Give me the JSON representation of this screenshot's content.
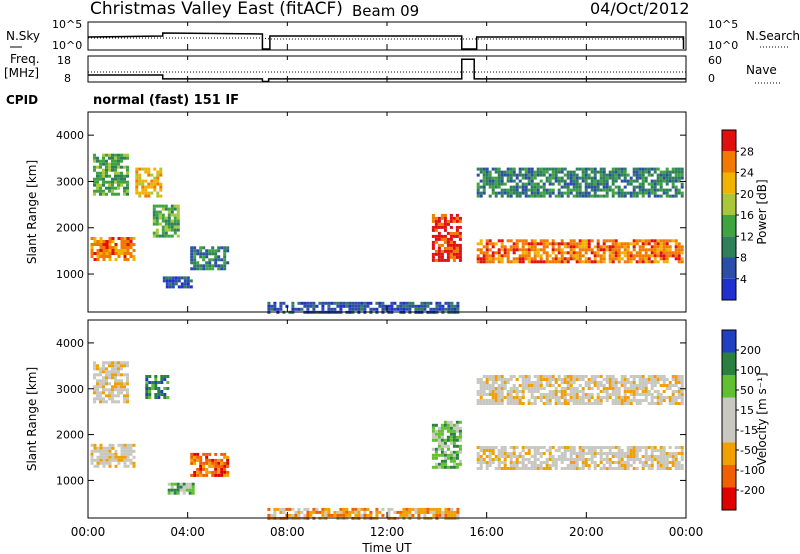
{
  "header": {
    "title": "Christmas Valley East (fitACF)",
    "beam": "Beam 09",
    "date": "04/Oct/2012"
  },
  "colors": {
    "power": [
      "#1f2fd0",
      "#2b4fa8",
      "#2e7f5a",
      "#3fa33f",
      "#a8c83a",
      "#f2b300",
      "#f27a00",
      "#e01010"
    ],
    "velocity": [
      "#e00000",
      "#f06000",
      "#f0a000",
      "#c8c8c0",
      "#c8c8c0",
      "#60c030",
      "#2a8040",
      "#2040c0"
    ]
  },
  "chart_data": [
    {
      "type": "line",
      "panel": "N.Sky / N.Search",
      "left_label": "N.Sky",
      "right_label": "N.Search",
      "left_ticks": [
        "10^5",
        "10^0"
      ],
      "right_ticks": [
        "10^5",
        "10^0"
      ],
      "x_ticks": [
        "00:00",
        "04:00",
        "08:00",
        "12:00",
        "16:00",
        "20:00",
        "00:00"
      ]
    },
    {
      "type": "line",
      "panel": "Freq / Nave",
      "left_label_1": "Freq.",
      "left_label_2": "[MHz]",
      "left_ticks": [
        "18",
        "8"
      ],
      "right_label": "Nave",
      "right_ticks": [
        "60",
        "0"
      ],
      "cpid_label": "CPID",
      "cpid_text": "normal (fast) 151 IF",
      "freq_steps": [
        [
          0,
          10.9
        ],
        [
          3.0,
          10.9
        ],
        [
          3.0,
          9.3
        ],
        [
          7.0,
          9.3
        ],
        [
          7.0,
          8.2
        ],
        [
          7.25,
          8.2
        ],
        [
          7.25,
          9.3
        ],
        [
          15.0,
          9.3
        ],
        [
          15.0,
          17.5
        ],
        [
          15.5,
          17.5
        ],
        [
          15.5,
          9.3
        ],
        [
          24.0,
          9.3
        ]
      ]
    },
    {
      "type": "heatmap",
      "panel": "power",
      "ylabel": "Slant Range [km]",
      "yticks": [
        1000,
        2000,
        3000,
        4000
      ],
      "ylim": [
        180,
        4500
      ],
      "xlim": [
        0,
        24
      ],
      "colorbar_label": "Power [dB]",
      "colorbar_ticks": [
        "4",
        "8",
        "12",
        "16",
        "20",
        "24",
        "28"
      ],
      "echo_regions": [
        {
          "t0": 0.1,
          "t1": 1.8,
          "r0": 1300,
          "r1": 1800,
          "level": 6
        },
        {
          "t0": 0.2,
          "t1": 1.6,
          "r0": 2700,
          "r1": 3600,
          "level": 3
        },
        {
          "t0": 1.9,
          "t1": 2.9,
          "r0": 2700,
          "r1": 3300,
          "level": 5
        },
        {
          "t0": 2.6,
          "t1": 3.6,
          "r0": 1800,
          "r1": 2500,
          "level": 3
        },
        {
          "t0": 4.1,
          "t1": 5.6,
          "r0": 1100,
          "r1": 1600,
          "level": 2
        },
        {
          "t0": 3.0,
          "t1": 4.2,
          "r0": 700,
          "r1": 950,
          "level": 1
        },
        {
          "t0": 7.2,
          "t1": 14.8,
          "r0": 180,
          "r1": 400,
          "level": 1
        },
        {
          "t0": 13.8,
          "t1": 15.0,
          "r0": 1300,
          "r1": 2300,
          "level": 7
        },
        {
          "t0": 15.6,
          "t1": 23.9,
          "r0": 1250,
          "r1": 1750,
          "level": 6
        },
        {
          "t0": 15.6,
          "t1": 23.9,
          "r0": 2700,
          "r1": 3300,
          "level": 2
        }
      ]
    },
    {
      "type": "heatmap",
      "panel": "velocity",
      "ylabel": "Slant Range [km]",
      "yticks": [
        1000,
        2000,
        3000,
        4000
      ],
      "ylim": [
        180,
        4500
      ],
      "xlim": [
        0,
        24
      ],
      "xlabel": "Time UT",
      "x_ticks": [
        "00:00",
        "04:00",
        "08:00",
        "12:00",
        "16:00",
        "20:00",
        "00:00"
      ],
      "colorbar_label": "Velocity [m s⁻¹]",
      "colorbar_ticks": [
        "-200",
        "-100",
        "-50",
        "-15",
        "15",
        "50",
        "100",
        "200"
      ],
      "echo_regions": [
        {
          "t0": 0.1,
          "t1": 1.8,
          "r0": 1300,
          "r1": 1800,
          "level": 3
        },
        {
          "t0": 0.2,
          "t1": 1.6,
          "r0": 2700,
          "r1": 3600,
          "level": 3
        },
        {
          "t0": 2.3,
          "t1": 3.2,
          "r0": 2800,
          "r1": 3300,
          "level": 6
        },
        {
          "t0": 4.1,
          "t1": 5.6,
          "r0": 1100,
          "r1": 1600,
          "level": 1
        },
        {
          "t0": 3.2,
          "t1": 4.2,
          "r0": 700,
          "r1": 950,
          "level": 5
        },
        {
          "t0": 7.2,
          "t1": 14.8,
          "r0": 180,
          "r1": 400,
          "level": 2
        },
        {
          "t0": 13.8,
          "t1": 15.0,
          "r0": 1300,
          "r1": 2300,
          "level": 5
        },
        {
          "t0": 15.6,
          "t1": 23.9,
          "r0": 1250,
          "r1": 1750,
          "level": 3
        },
        {
          "t0": 15.6,
          "t1": 23.9,
          "r0": 2700,
          "r1": 3300,
          "level": 3
        }
      ]
    }
  ]
}
